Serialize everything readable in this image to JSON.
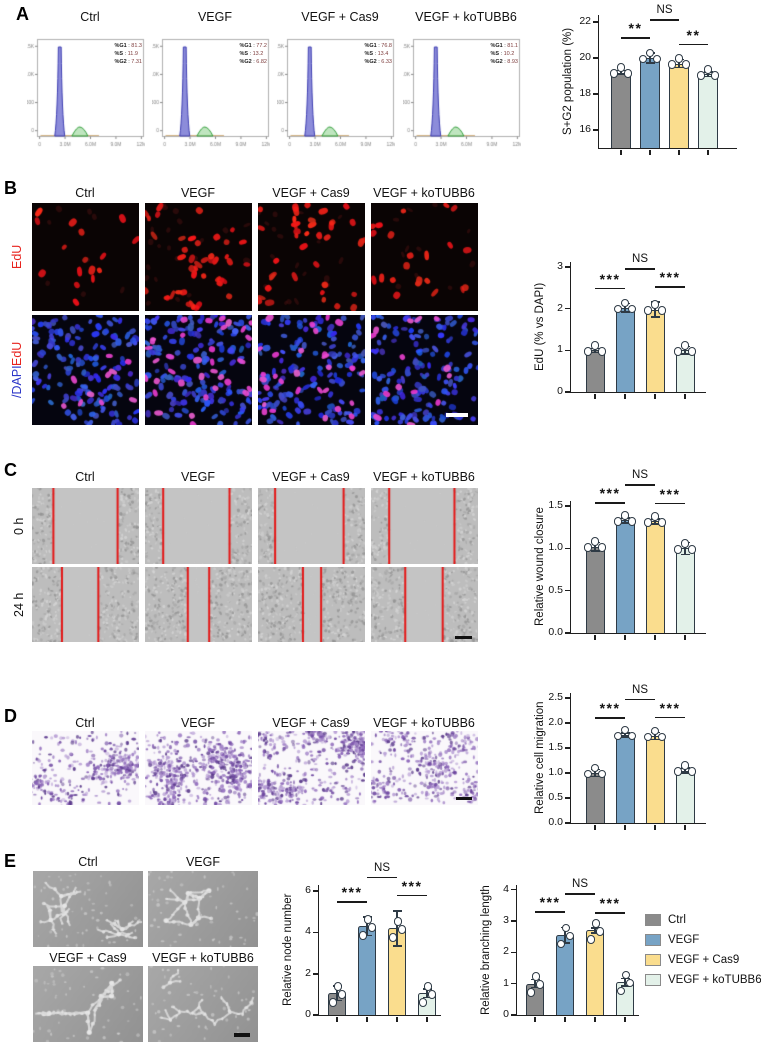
{
  "colors": {
    "series": [
      "#8b8b8b",
      "#77a3c5",
      "#fadd8e",
      "#e3f1e9"
    ],
    "bar_border": "#2e3a45",
    "axis": "#1f1f1f",
    "sig_text": "#111111",
    "edu_red": "#e8231e",
    "dapi_blue": "#2b35c8",
    "wound_line": "#e41717"
  },
  "groups": [
    "Ctrl",
    "VEGF",
    "VEGF + Cas9",
    "VEGF + koTUBB6"
  ],
  "panels": {
    "A": {
      "label": "A",
      "histograms": [
        {
          "title": "Ctrl",
          "stats": [
            {
              "k": "%G1",
              "v": "81.3"
            },
            {
              "k": "%S",
              "v": "11.9"
            },
            {
              "k": "%G2",
              "v": "7.31"
            }
          ]
        },
        {
          "title": "VEGF",
          "stats": [
            {
              "k": "%G1",
              "v": "77.2"
            },
            {
              "k": "%S",
              "v": "13.2"
            },
            {
              "k": "%G2",
              "v": "6.82"
            }
          ]
        },
        {
          "title": "VEGF + Cas9",
          "stats": [
            {
              "k": "%G1",
              "v": "76.8"
            },
            {
              "k": "%S",
              "v": "13.4"
            },
            {
              "k": "%G2",
              "v": "6.33"
            }
          ]
        },
        {
          "title": "VEGF + koTUBB6",
          "stats": [
            {
              "k": "%G1",
              "v": "81.1"
            },
            {
              "k": "%S",
              "v": "10.2"
            },
            {
              "k": "%G2",
              "v": "8.93"
            }
          ]
        }
      ],
      "hist_axis": {
        "x_ticks": [
          "0",
          "3.0M",
          "6.0M",
          "9.0M",
          "12M"
        ],
        "y_ticks": [
          "1.5K",
          "1.0K",
          "500",
          "0"
        ]
      }
    },
    "B": {
      "label": "B",
      "col_titles": [
        "Ctrl",
        "VEGF",
        "VEGF + Cas9",
        "VEGF + koTUBB6"
      ],
      "row1_label": "EdU",
      "row2_label_red": "EdU",
      "row2_label_blue": "/DAPI"
    },
    "C": {
      "label": "C",
      "col_titles": [
        "Ctrl",
        "VEGF",
        "VEGF + Cas9",
        "VEGF + koTUBB6"
      ],
      "row_labels": [
        "0 h",
        "24 h"
      ]
    },
    "D": {
      "label": "D",
      "col_titles": [
        "Ctrl",
        "VEGF",
        "VEGF + Cas9",
        "VEGF + koTUBB6"
      ]
    },
    "E": {
      "label": "E",
      "img_titles": [
        "Ctrl",
        "VEGF",
        "VEGF + Cas9",
        "VEGF + koTUBB6"
      ],
      "legend": [
        "Ctrl",
        "VEGF",
        "VEGF + Cas9",
        "VEGF + koTUBB6"
      ]
    }
  },
  "chart_data": [
    {
      "type": "bar",
      "ylabel": "S+G2 population (%)",
      "categories": [
        "Ctrl",
        "VEGF",
        "VEGF + Cas9",
        "VEGF + koTUBB6"
      ],
      "values": [
        19.2,
        20.0,
        19.7,
        19.1
      ],
      "errors": [
        0.12,
        0.28,
        0.22,
        0.12
      ],
      "ylim": [
        15,
        22
      ],
      "ytop": 22.4,
      "yticks": [
        16,
        18,
        20,
        22
      ],
      "ytick_labels": [
        "16",
        "18",
        "20",
        "22"
      ],
      "sig": [
        {
          "a": 0,
          "b": 1,
          "label": "**"
        },
        {
          "a": 1,
          "b": 2,
          "label": "NS",
          "high": true
        },
        {
          "a": 2,
          "b": 3,
          "label": "**"
        }
      ]
    },
    {
      "type": "bar",
      "ylabel": "EdU (% vs DAPI)",
      "categories": [
        "Ctrl",
        "VEGF",
        "VEGF + Cas9",
        "VEGF + koTUBB6"
      ],
      "values": [
        1.0,
        2.02,
        1.98,
        1.0
      ],
      "errors": [
        0.05,
        0.1,
        0.18,
        0.09
      ],
      "ylim": [
        0,
        3
      ],
      "ytop": 3.12,
      "yticks": [
        0,
        1,
        2,
        3
      ],
      "ytick_labels": [
        "0",
        "1",
        "2",
        "3"
      ],
      "sig": [
        {
          "a": 0,
          "b": 1,
          "label": "***"
        },
        {
          "a": 1,
          "b": 2,
          "label": "NS",
          "high": true
        },
        {
          "a": 2,
          "b": 3,
          "label": "***"
        }
      ]
    },
    {
      "type": "bar",
      "ylabel": "Relative wound closure",
      "categories": [
        "Ctrl",
        "VEGF",
        "VEGF + Cas9",
        "VEGF + koTUBB6"
      ],
      "values": [
        1.02,
        1.33,
        1.32,
        1.0
      ],
      "errors": [
        0.05,
        0.03,
        0.03,
        0.07
      ],
      "ylim": [
        0,
        1.5
      ],
      "ytop": 1.56,
      "yticks": [
        0,
        0.5,
        1,
        1.5
      ],
      "ytick_labels": [
        "0.0",
        "0.5",
        "1.0",
        "1.5"
      ],
      "sig": [
        {
          "a": 0,
          "b": 1,
          "label": "***"
        },
        {
          "a": 1,
          "b": 2,
          "label": "NS",
          "high": true
        },
        {
          "a": 2,
          "b": 3,
          "label": "***"
        }
      ]
    },
    {
      "type": "bar",
      "ylabel": "Relative cell migration",
      "categories": [
        "Ctrl",
        "VEGF",
        "VEGF + Cas9",
        "VEGF + koTUBB6"
      ],
      "values": [
        1.0,
        1.76,
        1.74,
        1.05
      ],
      "errors": [
        0.07,
        0.04,
        0.07,
        0.05
      ],
      "ylim": [
        0,
        2.5
      ],
      "ytop": 2.6,
      "yticks": [
        0,
        0.5,
        1,
        1.5,
        2,
        2.5
      ],
      "ytick_labels": [
        "0.0",
        "0.5",
        "1.0",
        "1.5",
        "2.0",
        "2.5"
      ],
      "sig": [
        {
          "a": 0,
          "b": 1,
          "label": "***"
        },
        {
          "a": 1,
          "b": 2,
          "label": "NS",
          "high": true
        },
        {
          "a": 2,
          "b": 3,
          "label": "***"
        }
      ]
    },
    {
      "type": "bar",
      "ylabel": "Relative node number",
      "categories": [
        "Ctrl",
        "VEGF",
        "VEGF + Cas9",
        "VEGF + koTUBB6"
      ],
      "values": [
        1.05,
        4.3,
        4.2,
        1.05
      ],
      "errors": [
        0.35,
        0.45,
        0.85,
        0.2
      ],
      "ylim": [
        0,
        6
      ],
      "ytop": 6.3,
      "yticks": [
        0,
        2,
        4,
        6
      ],
      "ytick_labels": [
        "0",
        "2",
        "4",
        "6"
      ],
      "spread": true,
      "sig": [
        {
          "a": 0,
          "b": 1,
          "label": "***"
        },
        {
          "a": 1,
          "b": 2,
          "label": "NS",
          "high": true
        },
        {
          "a": 2,
          "b": 3,
          "label": "***"
        }
      ]
    },
    {
      "type": "bar",
      "ylabel": "Relative branching length",
      "categories": [
        "Ctrl",
        "VEGF",
        "VEGF + Cas9",
        "VEGF + koTUBB6"
      ],
      "values": [
        1.0,
        2.55,
        2.7,
        1.05
      ],
      "errors": [
        0.13,
        0.25,
        0.08,
        0.12
      ],
      "ylim": [
        0,
        4
      ],
      "ytop": 4.15,
      "yticks": [
        0,
        1,
        2,
        3,
        4
      ],
      "ytick_labels": [
        "0",
        "1",
        "2",
        "3",
        "4"
      ],
      "spread": true,
      "sig": [
        {
          "a": 0,
          "b": 1,
          "label": "***"
        },
        {
          "a": 1,
          "b": 2,
          "label": "NS",
          "high": true
        },
        {
          "a": 2,
          "b": 3,
          "label": "***"
        }
      ]
    }
  ]
}
